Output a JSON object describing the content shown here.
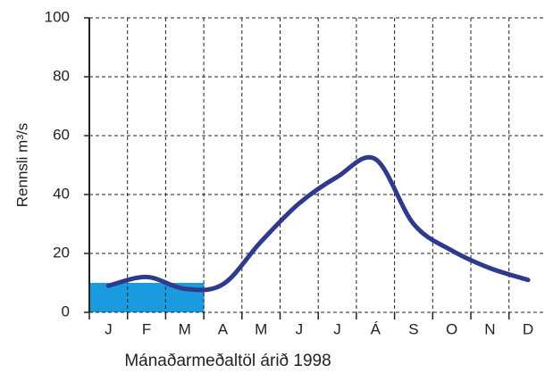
{
  "chart_data": {
    "type": "line",
    "x_label": "Mánaðarmeðaltöl árið 1998",
    "y_label": "Rennsli m³/s",
    "categories": [
      "J",
      "F",
      "M",
      "A",
      "M",
      "J",
      "J",
      "Á",
      "S",
      "O",
      "N",
      "D"
    ],
    "series": [
      {
        "kind": "bar",
        "color": "#1a9be0",
        "values": [
          10,
          10,
          10,
          null,
          null,
          null,
          null,
          null,
          null,
          null,
          null,
          null
        ]
      },
      {
        "kind": "line",
        "color": "#2e3a8c",
        "values": [
          9,
          12,
          8,
          9.5,
          24,
          37,
          46,
          52,
          30,
          21,
          15,
          11
        ]
      }
    ],
    "ylim": [
      0,
      100
    ],
    "yticks": [
      0,
      20,
      40,
      60,
      80,
      100
    ],
    "grid": true
  }
}
